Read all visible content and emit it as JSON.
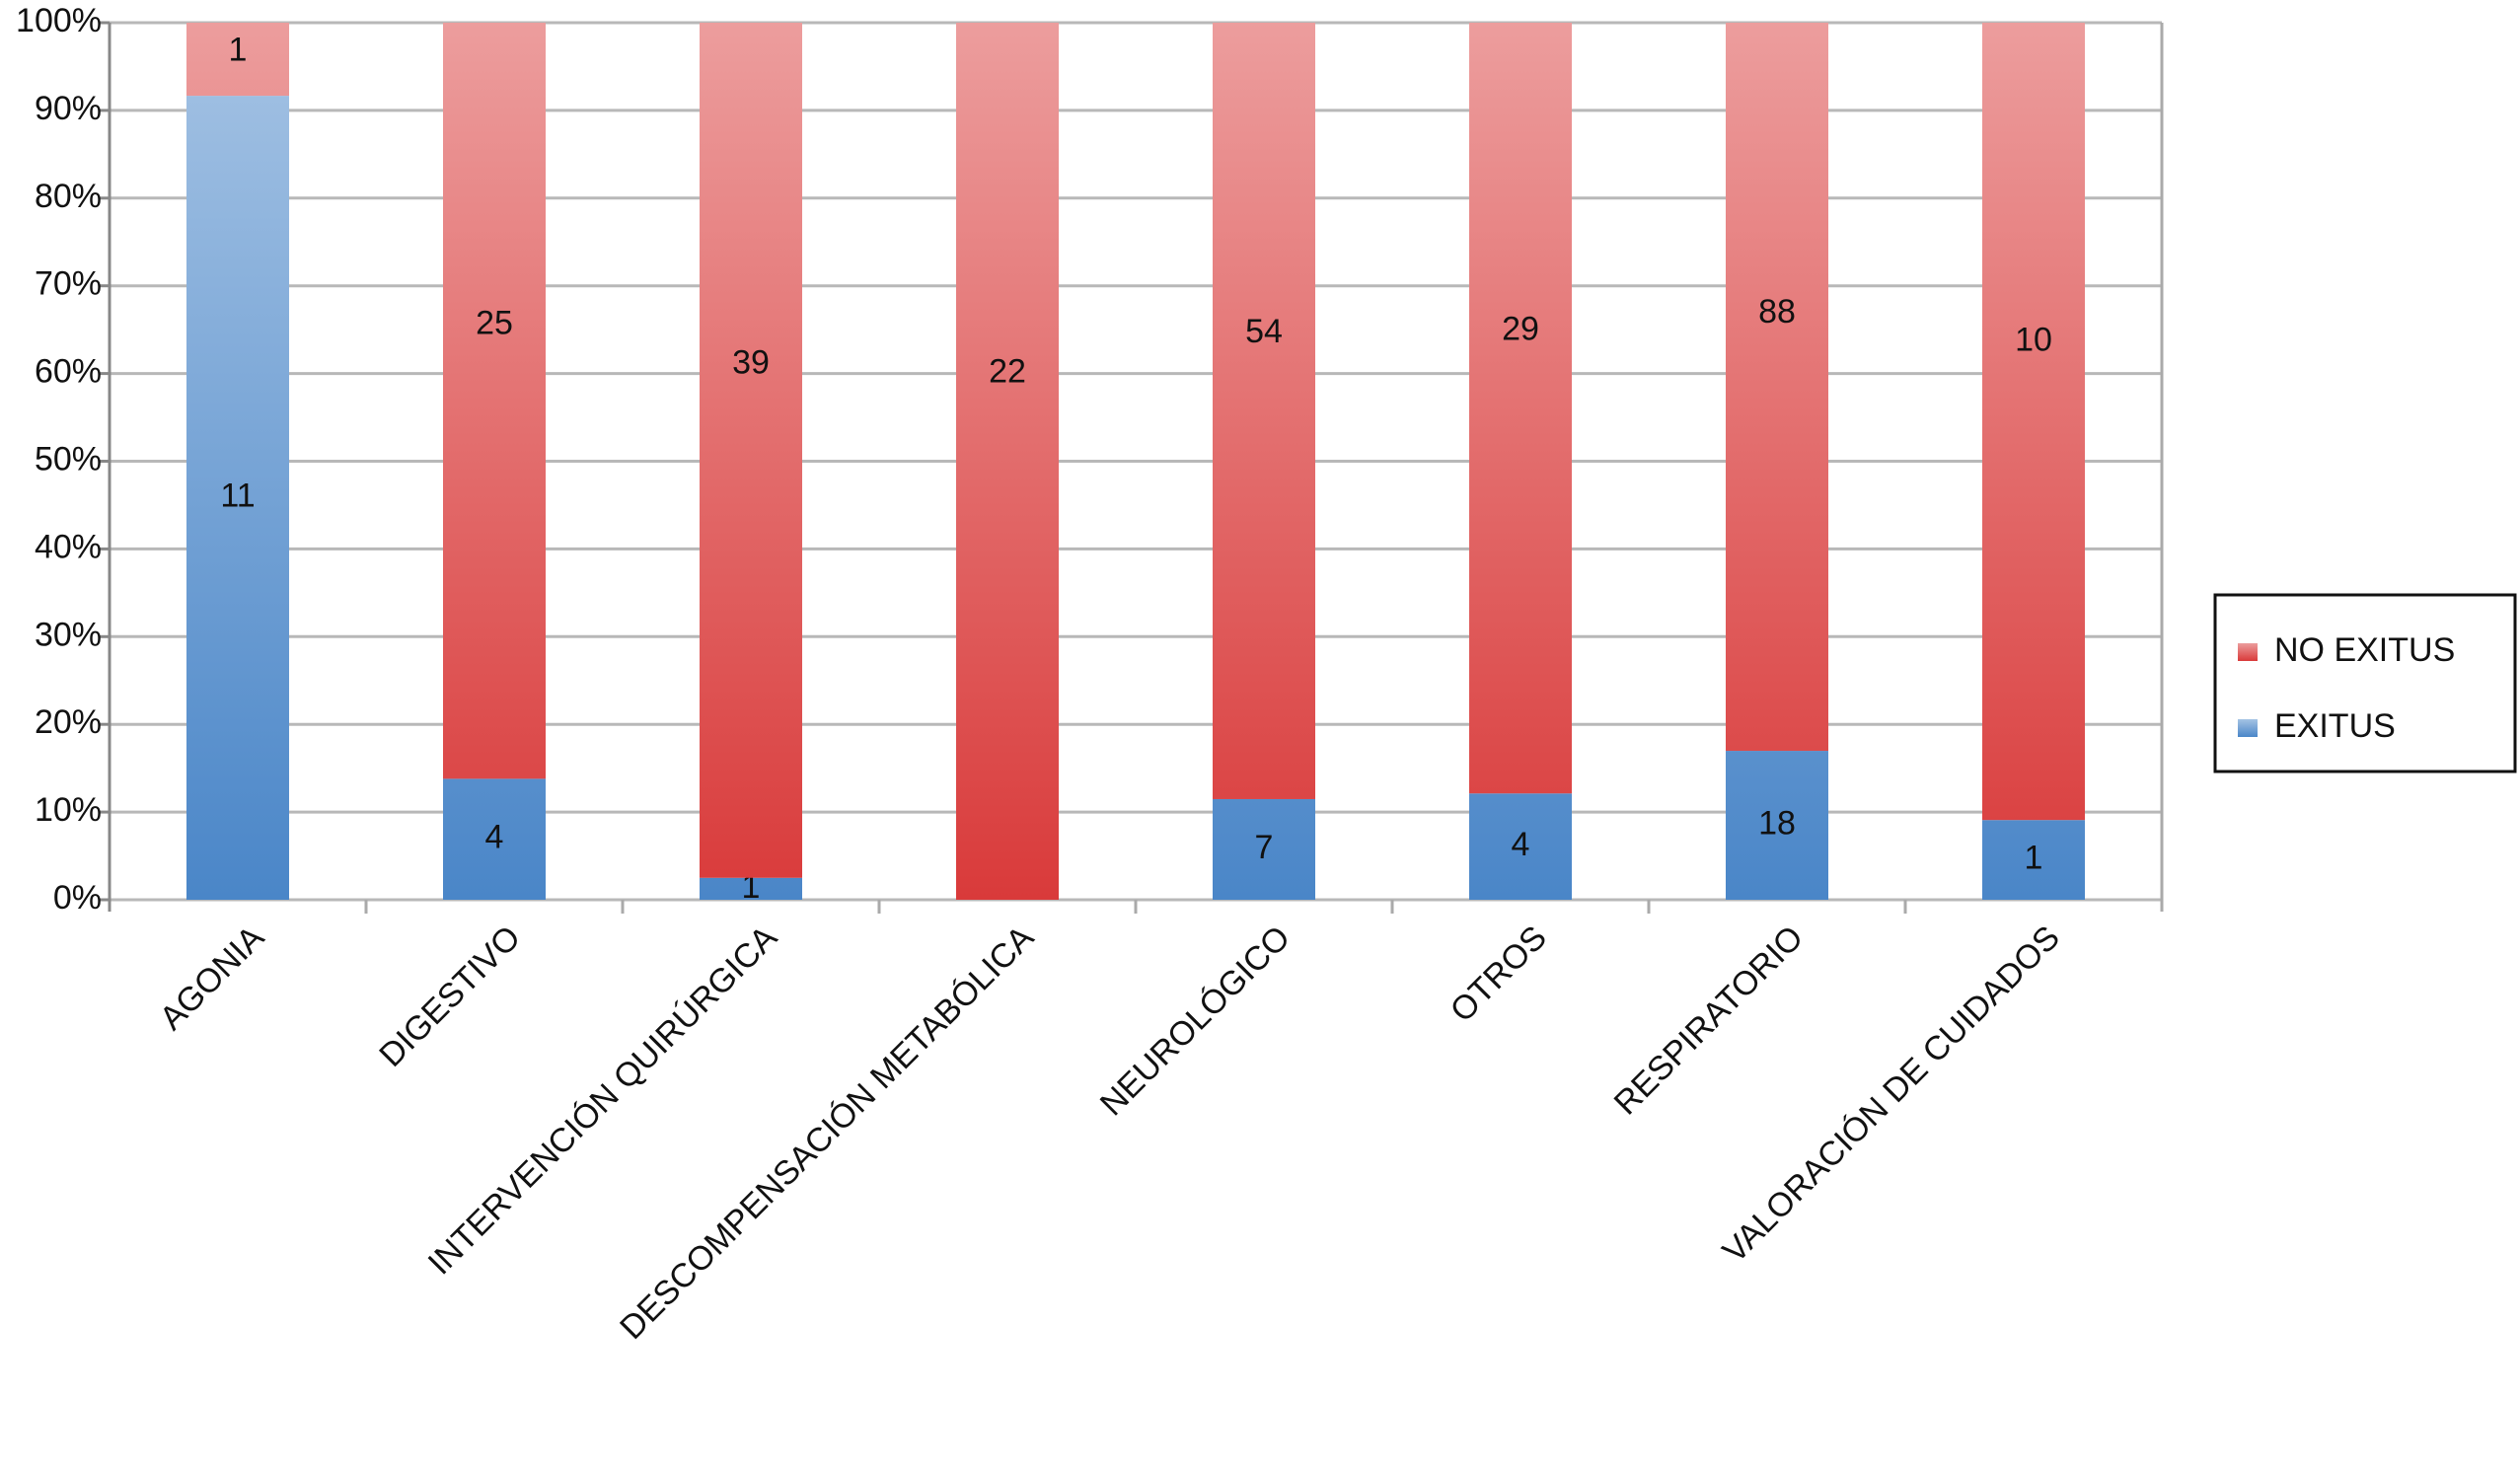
{
  "chart_data": {
    "type": "bar",
    "stacking": "percent",
    "categories": [
      "AGONIA",
      "DIGESTIVO",
      "INTERVENCIÓN QUIRÚRGICA",
      "DESCOMPENSACIÓN METABÓLICA",
      "NEUROLÓGICO",
      "OTROS",
      "RESPIRATORIO",
      "VALORACIÓN DE CUIDADOS"
    ],
    "series": [
      {
        "name": "EXITUS",
        "color": "#4a86c8",
        "values": [
          11,
          4,
          1,
          null,
          7,
          4,
          18,
          1
        ]
      },
      {
        "name": "NO EXITUS",
        "color": "#d93a3a",
        "values": [
          1,
          25,
          39,
          22,
          54,
          29,
          88,
          10
        ]
      }
    ],
    "ylim": [
      0,
      100
    ],
    "yticks": [
      {
        "value": 0,
        "label": "0%"
      },
      {
        "value": 10,
        "label": "10%"
      },
      {
        "value": 20,
        "label": "20%"
      },
      {
        "value": 30,
        "label": "30%"
      },
      {
        "value": 40,
        "label": "40%"
      },
      {
        "value": 50,
        "label": "50%"
      },
      {
        "value": 60,
        "label": "60%"
      },
      {
        "value": 70,
        "label": "70%"
      },
      {
        "value": 80,
        "label": "80%"
      },
      {
        "value": 90,
        "label": "90%"
      },
      {
        "value": 100,
        "label": "100%"
      }
    ],
    "grid": true,
    "legend": "right"
  }
}
